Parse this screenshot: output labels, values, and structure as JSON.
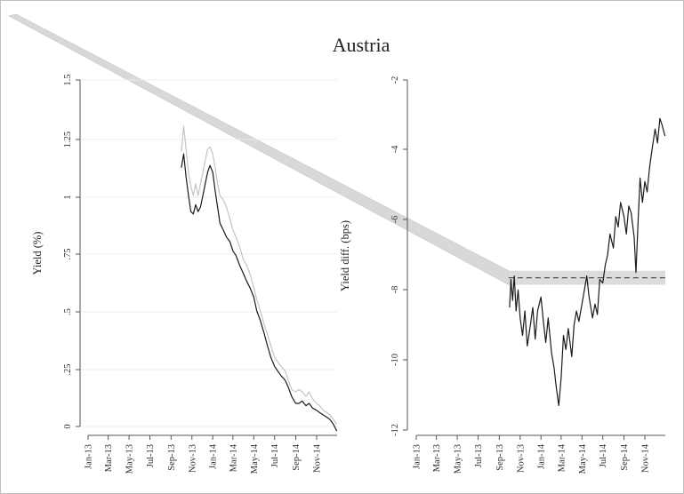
{
  "figure": {
    "title": "Austria"
  },
  "chart_data": [
    {
      "type": "line",
      "panel": "left",
      "xlabel": "",
      "ylabel": "Yield (%)",
      "x_ticks": [
        "Jan-13",
        "Mar-13",
        "May-13",
        "Jul-13",
        "Sep-13",
        "Nov-13",
        "Jan-14",
        "Mar-14",
        "May-14",
        "Jul-14",
        "Sep-14",
        "Nov-14"
      ],
      "y_ticks": [
        "0",
        ".25",
        ".5",
        ".75",
        "1",
        "1.25",
        "1.5"
      ],
      "ylim": [
        -0.03,
        1.5
      ],
      "xlim": [
        "2013-01-01",
        "2014-12-31"
      ],
      "grid": true,
      "series": [
        {
          "color": "#c4c4c4",
          "points": [
            [
              "2013-10-01",
              1.19
            ],
            [
              "2013-10-08",
              1.3
            ],
            [
              "2013-10-15",
              1.2
            ],
            [
              "2013-10-22",
              1.1
            ],
            [
              "2013-10-29",
              1.04
            ],
            [
              "2013-11-05",
              1.0
            ],
            [
              "2013-11-12",
              1.05
            ],
            [
              "2013-11-19",
              1.0
            ],
            [
              "2013-11-26",
              1.05
            ],
            [
              "2013-12-03",
              1.1
            ],
            [
              "2013-12-10",
              1.15
            ],
            [
              "2013-12-17",
              1.2
            ],
            [
              "2013-12-24",
              1.21
            ],
            [
              "2014-01-01",
              1.18
            ],
            [
              "2014-01-08",
              1.12
            ],
            [
              "2014-01-15",
              1.05
            ],
            [
              "2014-01-22",
              1.0
            ],
            [
              "2014-02-01",
              0.98
            ],
            [
              "2014-02-10",
              0.95
            ],
            [
              "2014-02-20",
              0.9
            ],
            [
              "2014-03-01",
              0.85
            ],
            [
              "2014-03-10",
              0.82
            ],
            [
              "2014-03-20",
              0.78
            ],
            [
              "2014-04-01",
              0.72
            ],
            [
              "2014-04-10",
              0.7
            ],
            [
              "2014-04-20",
              0.66
            ],
            [
              "2014-05-01",
              0.6
            ],
            [
              "2014-05-10",
              0.55
            ],
            [
              "2014-05-20",
              0.5
            ],
            [
              "2014-06-01",
              0.44
            ],
            [
              "2014-06-10",
              0.4
            ],
            [
              "2014-06-20",
              0.35
            ],
            [
              "2014-07-01",
              0.3
            ],
            [
              "2014-07-10",
              0.28
            ],
            [
              "2014-07-20",
              0.26
            ],
            [
              "2014-08-01",
              0.24
            ],
            [
              "2014-08-10",
              0.2
            ],
            [
              "2014-08-20",
              0.16
            ],
            [
              "2014-09-01",
              0.15
            ],
            [
              "2014-09-10",
              0.16
            ],
            [
              "2014-09-20",
              0.15
            ],
            [
              "2014-10-01",
              0.13
            ],
            [
              "2014-10-10",
              0.15
            ],
            [
              "2014-10-20",
              0.12
            ],
            [
              "2014-11-01",
              0.1
            ],
            [
              "2014-11-10",
              0.09
            ],
            [
              "2014-11-20",
              0.07
            ],
            [
              "2014-12-01",
              0.06
            ],
            [
              "2014-12-10",
              0.05
            ],
            [
              "2014-12-20",
              0.03
            ],
            [
              "2014-12-30",
              0.01
            ]
          ]
        },
        {
          "color": "#1a1a1a",
          "points": [
            [
              "2013-10-01",
              1.12
            ],
            [
              "2013-10-08",
              1.18
            ],
            [
              "2013-10-15",
              1.08
            ],
            [
              "2013-10-22",
              1.0
            ],
            [
              "2013-10-29",
              0.93
            ],
            [
              "2013-11-05",
              0.92
            ],
            [
              "2013-11-12",
              0.96
            ],
            [
              "2013-11-19",
              0.93
            ],
            [
              "2013-11-26",
              0.95
            ],
            [
              "2013-12-03",
              1.0
            ],
            [
              "2013-12-10",
              1.05
            ],
            [
              "2013-12-17",
              1.1
            ],
            [
              "2013-12-24",
              1.13
            ],
            [
              "2014-01-01",
              1.1
            ],
            [
              "2014-01-08",
              1.02
            ],
            [
              "2014-01-15",
              0.95
            ],
            [
              "2014-01-22",
              0.88
            ],
            [
              "2014-02-01",
              0.85
            ],
            [
              "2014-02-10",
              0.82
            ],
            [
              "2014-02-20",
              0.8
            ],
            [
              "2014-03-01",
              0.76
            ],
            [
              "2014-03-10",
              0.74
            ],
            [
              "2014-03-20",
              0.7
            ],
            [
              "2014-04-01",
              0.66
            ],
            [
              "2014-04-10",
              0.63
            ],
            [
              "2014-04-20",
              0.6
            ],
            [
              "2014-05-01",
              0.56
            ],
            [
              "2014-05-10",
              0.5
            ],
            [
              "2014-05-20",
              0.46
            ],
            [
              "2014-06-01",
              0.4
            ],
            [
              "2014-06-10",
              0.35
            ],
            [
              "2014-06-20",
              0.3
            ],
            [
              "2014-07-01",
              0.26
            ],
            [
              "2014-07-10",
              0.24
            ],
            [
              "2014-07-20",
              0.22
            ],
            [
              "2014-08-01",
              0.2
            ],
            [
              "2014-08-10",
              0.17
            ],
            [
              "2014-08-20",
              0.13
            ],
            [
              "2014-09-01",
              0.1
            ],
            [
              "2014-09-10",
              0.1
            ],
            [
              "2014-09-20",
              0.11
            ],
            [
              "2014-10-01",
              0.09
            ],
            [
              "2014-10-10",
              0.1
            ],
            [
              "2014-10-20",
              0.08
            ],
            [
              "2014-11-01",
              0.07
            ],
            [
              "2014-11-10",
              0.06
            ],
            [
              "2014-11-20",
              0.05
            ],
            [
              "2014-12-01",
              0.04
            ],
            [
              "2014-12-10",
              0.03
            ],
            [
              "2014-12-20",
              0.01
            ],
            [
              "2014-12-30",
              -0.02
            ]
          ]
        }
      ]
    },
    {
      "type": "line",
      "panel": "right",
      "xlabel": "",
      "ylabel": "Yield diff. (bps)",
      "x_ticks": [
        "Jan-13",
        "Mar-13",
        "May-13",
        "Jul-13",
        "Sep-13",
        "Nov-13",
        "Jan-14",
        "Mar-14",
        "May-14",
        "Jul-14",
        "Sep-14",
        "Nov-14"
      ],
      "y_ticks": [
        "-2",
        "-4",
        "-6",
        "-8",
        "-10",
        "-12"
      ],
      "ylim": [
        -12,
        -2
      ],
      "xlim": [
        "2013-01-01",
        "2014-12-31"
      ],
      "grid": false,
      "mean_line": {
        "value": -7.65,
        "color": "#555555",
        "style": "dashed"
      },
      "band": {
        "low": -7.85,
        "high": -7.45,
        "color": "#dcdcdc"
      },
      "series": [
        {
          "color": "#1a1a1a",
          "points": [
            [
              "2013-10-01",
              -8.5
            ],
            [
              "2013-10-05",
              -7.7
            ],
            [
              "2013-10-10",
              -8.3
            ],
            [
              "2013-10-15",
              -7.6
            ],
            [
              "2013-10-20",
              -8.6
            ],
            [
              "2013-10-26",
              -8.0
            ],
            [
              "2013-11-01",
              -8.8
            ],
            [
              "2013-11-08",
              -9.3
            ],
            [
              "2013-11-15",
              -8.6
            ],
            [
              "2013-11-22",
              -9.6
            ],
            [
              "2013-12-01",
              -9.0
            ],
            [
              "2013-12-08",
              -8.5
            ],
            [
              "2013-12-15",
              -9.4
            ],
            [
              "2013-12-22",
              -8.6
            ],
            [
              "2014-01-01",
              -8.2
            ],
            [
              "2014-01-08",
              -8.9
            ],
            [
              "2014-01-15",
              -9.5
            ],
            [
              "2014-01-22",
              -8.8
            ],
            [
              "2014-02-01",
              -9.8
            ],
            [
              "2014-02-08",
              -10.2
            ],
            [
              "2014-02-15",
              -10.8
            ],
            [
              "2014-02-22",
              -11.3
            ],
            [
              "2014-03-01",
              -10.5
            ],
            [
              "2014-03-08",
              -9.3
            ],
            [
              "2014-03-15",
              -9.7
            ],
            [
              "2014-03-22",
              -9.1
            ],
            [
              "2014-04-01",
              -9.9
            ],
            [
              "2014-04-08",
              -9.0
            ],
            [
              "2014-04-15",
              -8.6
            ],
            [
              "2014-04-22",
              -8.9
            ],
            [
              "2014-05-01",
              -8.4
            ],
            [
              "2014-05-08",
              -8.0
            ],
            [
              "2014-05-15",
              -7.6
            ],
            [
              "2014-05-22",
              -8.2
            ],
            [
              "2014-06-01",
              -8.8
            ],
            [
              "2014-06-08",
              -8.4
            ],
            [
              "2014-06-15",
              -8.7
            ],
            [
              "2014-06-22",
              -7.7
            ],
            [
              "2014-07-01",
              -7.8
            ],
            [
              "2014-07-08",
              -7.3
            ],
            [
              "2014-07-15",
              -7.0
            ],
            [
              "2014-07-22",
              -6.4
            ],
            [
              "2014-08-01",
              -6.8
            ],
            [
              "2014-08-08",
              -5.9
            ],
            [
              "2014-08-15",
              -6.2
            ],
            [
              "2014-08-22",
              -5.5
            ],
            [
              "2014-09-01",
              -5.9
            ],
            [
              "2014-09-08",
              -6.4
            ],
            [
              "2014-09-15",
              -5.6
            ],
            [
              "2014-09-22",
              -5.8
            ],
            [
              "2014-10-01",
              -6.5
            ],
            [
              "2014-10-06",
              -7.5
            ],
            [
              "2014-10-12",
              -6.1
            ],
            [
              "2014-10-18",
              -4.8
            ],
            [
              "2014-10-25",
              -5.5
            ],
            [
              "2014-11-01",
              -4.9
            ],
            [
              "2014-11-08",
              -5.2
            ],
            [
              "2014-11-15",
              -4.5
            ],
            [
              "2014-11-22",
              -4.0
            ],
            [
              "2014-12-01",
              -3.4
            ],
            [
              "2014-12-08",
              -3.8
            ],
            [
              "2014-12-15",
              -3.1
            ],
            [
              "2014-12-22",
              -3.3
            ],
            [
              "2014-12-30",
              -3.6
            ]
          ]
        }
      ]
    }
  ],
  "connector": {
    "color": "#d8d8d8"
  }
}
